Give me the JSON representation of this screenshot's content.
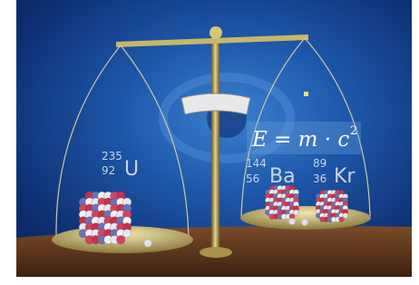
{
  "uranium": {
    "mass": "235",
    "number": "92",
    "symbol": "U"
  },
  "barium": {
    "mass": "144",
    "number": "56",
    "symbol": "Ba"
  },
  "krypton": {
    "mass": "89",
    "number": "36",
    "symbol": "Kr"
  },
  "formula": {
    "text": "E = m · c",
    "exponent": "2"
  }
}
